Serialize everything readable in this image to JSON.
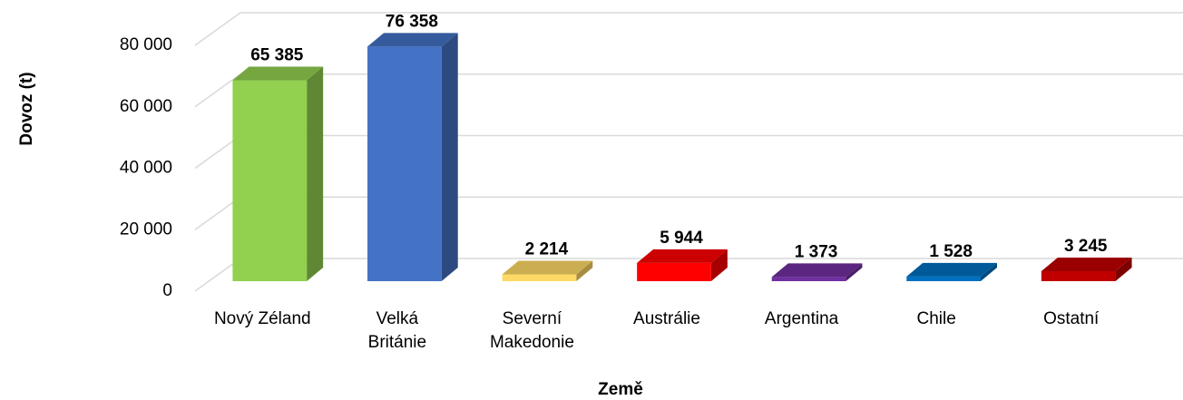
{
  "chart_data": {
    "type": "bar3d",
    "y_label": "Dovoz (t)",
    "x_label": "Země",
    "categories": [
      "Nový Zéland",
      "Velká\nBritánie",
      "Severní\nMakedonie",
      "Austrálie",
      "Argentina",
      "Chile",
      "Ostatní"
    ],
    "values": [
      65385,
      76358,
      2214,
      5944,
      1373,
      1528,
      3245
    ],
    "value_labels": [
      "65 385",
      "76 358",
      "2 214",
      "5 944",
      "1 373",
      "1 528",
      "3 245"
    ],
    "colors": [
      "#92d050",
      "#4472c4",
      "#ffd966",
      "#ff0000",
      "#7030a0",
      "#0070c0",
      "#c00000"
    ],
    "ylim": [
      0,
      80000
    ],
    "yticks": [
      0,
      {
        "value": 20000,
        "label": "20 000"
      },
      {
        "value": 40000,
        "label": "40 000"
      },
      {
        "value": 60000,
        "label": "60 000"
      },
      {
        "value": 80000,
        "label": "80 000"
      }
    ],
    "grid": true
  }
}
